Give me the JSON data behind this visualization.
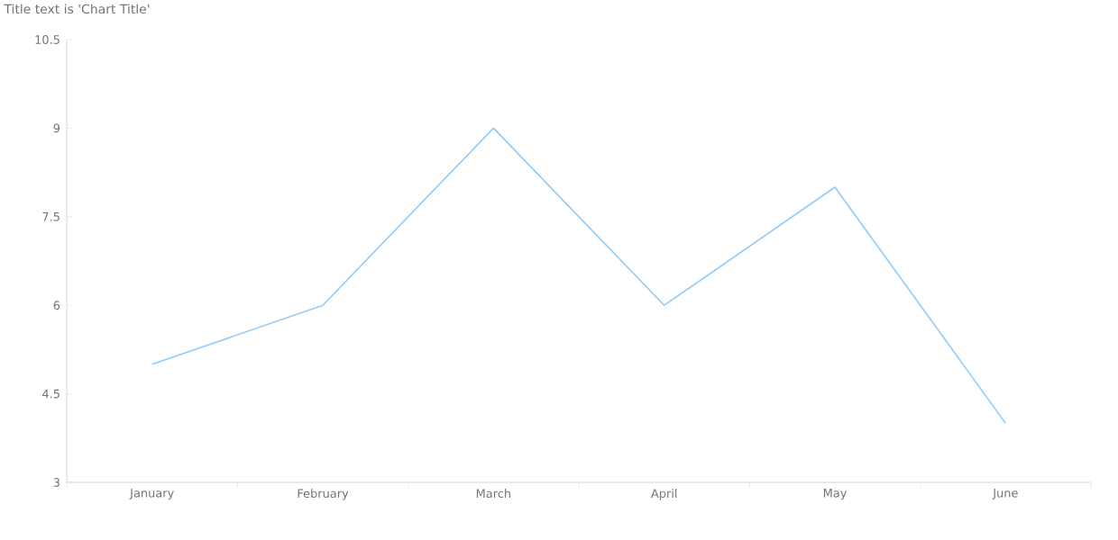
{
  "chart_data": {
    "type": "line",
    "title": "Title text is 'Chart Title'",
    "categories": [
      "January",
      "February",
      "March",
      "April",
      "May",
      "June"
    ],
    "series": [
      {
        "color": "#90caf9",
        "values": [
          5,
          6,
          9,
          6,
          8,
          4
        ]
      }
    ],
    "ylim": [
      3,
      10.5
    ],
    "yticks": [
      3,
      4.5,
      6,
      7.5,
      9,
      10.5
    ],
    "grid": false,
    "marker": "none",
    "line_style": "solid"
  }
}
